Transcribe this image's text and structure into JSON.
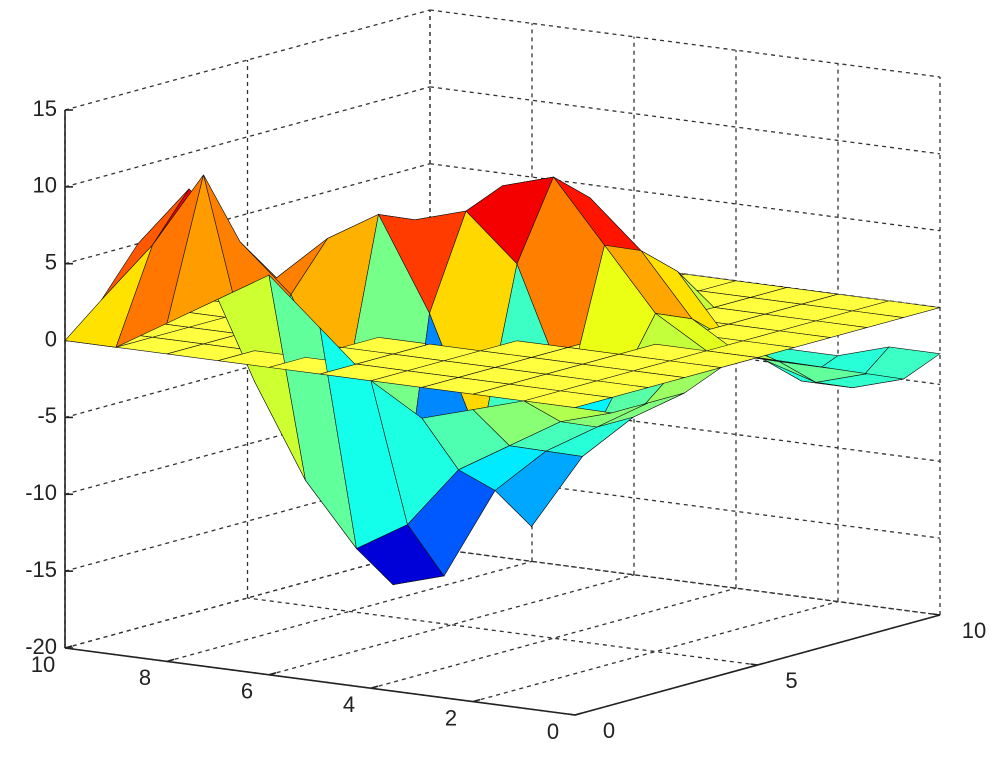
{
  "chart_data": {
    "type": "surface",
    "colormap": "jet",
    "grid": true,
    "xlim": [
      0,
      10
    ],
    "xticks": [
      0,
      2,
      4,
      6,
      8,
      10
    ],
    "ylim": [
      0,
      10
    ],
    "yticks": [
      0,
      5,
      10
    ],
    "zlim": [
      -20,
      15
    ],
    "zticks": [
      -20,
      -15,
      -10,
      -5,
      0,
      5,
      10,
      15
    ],
    "x": [
      0,
      1,
      2,
      3,
      4,
      5,
      6,
      7,
      8,
      9,
      10
    ],
    "y": [
      0,
      1,
      2,
      3,
      4,
      5,
      6,
      7,
      8,
      9,
      10
    ],
    "z": [
      [
        0,
        -1,
        -1,
        -1,
        0,
        0,
        -1,
        -2,
        -3,
        -4,
        -3
      ],
      [
        0,
        -2,
        -3,
        -3,
        -1,
        0,
        -1,
        -2,
        -4,
        -5,
        -3
      ],
      [
        -1,
        -4,
        -5,
        -6,
        -2,
        2,
        1,
        -1,
        -3,
        -5,
        -4
      ],
      [
        -2,
        -6,
        -8,
        -11,
        -3,
        6,
        5,
        3,
        0,
        -3,
        -4
      ],
      [
        0,
        -10,
        -14,
        -6,
        5,
        10,
        8,
        4,
        2,
        -2,
        -3
      ],
      [
        3,
        -12,
        -15,
        2,
        8,
        9,
        6,
        3,
        1,
        -1,
        -2
      ],
      [
        6,
        -8,
        -4,
        8,
        7,
        5,
        3,
        1,
        0,
        -1,
        0
      ],
      [
        4,
        -2,
        3,
        6,
        4,
        2,
        1,
        0,
        -1,
        0,
        0
      ],
      [
        2,
        11,
        6,
        3,
        2,
        1,
        0,
        -1,
        0,
        0,
        0
      ],
      [
        0,
        6,
        9,
        4,
        2,
        1,
        0,
        0,
        0,
        0,
        0
      ],
      [
        0,
        2,
        5,
        3,
        1,
        0,
        0,
        0,
        0,
        0,
        0
      ]
    ],
    "plane": {
      "z": 0,
      "color": "#ffff40"
    }
  }
}
